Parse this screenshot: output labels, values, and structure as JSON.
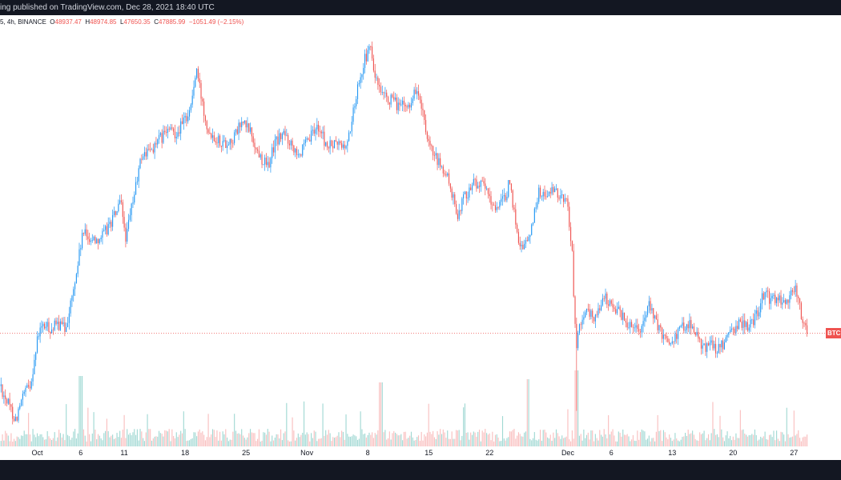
{
  "header": {
    "published_text": "ing published on TradingView.com, Dec 28, 2021 18:40 UTC"
  },
  "legend": {
    "symbol_text": "5, 4h, BINANCE",
    "o_label": "O",
    "o_value": "48937.47",
    "h_label": "H",
    "h_value": "48974.85",
    "l_label": "L",
    "l_value": "47650.35",
    "c_label": "C",
    "c_value": "47885.99",
    "change": "−1051.49 (−2.15%)"
  },
  "price_tag": {
    "text": "BTC"
  },
  "colors": {
    "up": "#2196f3",
    "down": "#ef5350",
    "vol_up": "#80cbc4",
    "vol_down": "#f7a8a8",
    "bar": "#131722"
  },
  "chart_data": {
    "type": "candlestick",
    "interval": "4h",
    "exchange": "BINANCE",
    "x_ticks": [
      {
        "label": "Oct",
        "day": 0
      },
      {
        "label": "6",
        "day": 5
      },
      {
        "label": "11",
        "day": 10
      },
      {
        "label": "18",
        "day": 17
      },
      {
        "label": "25",
        "day": 24
      },
      {
        "label": "Nov",
        "day": 31
      },
      {
        "label": "8",
        "day": 38
      },
      {
        "label": "15",
        "day": 45
      },
      {
        "label": "22",
        "day": 52
      },
      {
        "label": "Dec",
        "day": 61
      },
      {
        "label": "6",
        "day": 66
      },
      {
        "label": "13",
        "day": 73
      },
      {
        "label": "20",
        "day": 80
      },
      {
        "label": "27",
        "day": 87
      }
    ],
    "y_range": [
      40500,
      69500
    ],
    "last_price": 47885.99,
    "price_path": [
      [
        -4.5,
        44500
      ],
      [
        -3.5,
        43000
      ],
      [
        -2.5,
        41700
      ],
      [
        -1.5,
        43500
      ],
      [
        -0.8,
        44200
      ],
      [
        0.2,
        48000
      ],
      [
        0.8,
        48400
      ],
      [
        1.6,
        48200
      ],
      [
        2.5,
        48500
      ],
      [
        3.2,
        48200
      ],
      [
        4.2,
        51000
      ],
      [
        5.2,
        55000
      ],
      [
        6.5,
        54600
      ],
      [
        7.6,
        54900
      ],
      [
        8.6,
        56000
      ],
      [
        9.6,
        57200
      ],
      [
        10.2,
        54600
      ],
      [
        11.0,
        57400
      ],
      [
        12.0,
        60600
      ],
      [
        13.0,
        61000
      ],
      [
        14.0,
        61700
      ],
      [
        15.0,
        62400
      ],
      [
        16.0,
        62300
      ],
      [
        16.8,
        63000
      ],
      [
        17.6,
        64000
      ],
      [
        18.3,
        66800
      ],
      [
        18.8,
        65000
      ],
      [
        19.6,
        62600
      ],
      [
        20.4,
        62000
      ],
      [
        21.5,
        61500
      ],
      [
        22.5,
        61800
      ],
      [
        23.5,
        63000
      ],
      [
        24.5,
        62400
      ],
      [
        25.2,
        61000
      ],
      [
        26.5,
        59800
      ],
      [
        27.3,
        61500
      ],
      [
        28.3,
        62200
      ],
      [
        29.5,
        61300
      ],
      [
        30.3,
        60800
      ],
      [
        31.3,
        61800
      ],
      [
        32.3,
        62800
      ],
      [
        33.3,
        61200
      ],
      [
        34.5,
        61500
      ],
      [
        35.5,
        61200
      ],
      [
        36.2,
        63200
      ],
      [
        37.0,
        66200
      ],
      [
        37.6,
        67400
      ],
      [
        38.3,
        68400
      ],
      [
        38.8,
        66300
      ],
      [
        39.6,
        64800
      ],
      [
        40.6,
        64600
      ],
      [
        41.6,
        64200
      ],
      [
        42.6,
        64100
      ],
      [
        43.6,
        65500
      ],
      [
        44.3,
        63700
      ],
      [
        44.8,
        61500
      ],
      [
        45.6,
        60600
      ],
      [
        46.6,
        59600
      ],
      [
        47.4,
        58700
      ],
      [
        48.2,
        56300
      ],
      [
        49.0,
        57600
      ],
      [
        50.3,
        58800
      ],
      [
        51.6,
        58200
      ],
      [
        52.2,
        57000
      ],
      [
        53.0,
        57100
      ],
      [
        53.7,
        57400
      ],
      [
        54.2,
        58600
      ],
      [
        54.8,
        56800
      ],
      [
        55.4,
        54200
      ],
      [
        56.0,
        54300
      ],
      [
        56.6,
        54800
      ],
      [
        57.6,
        58000
      ],
      [
        58.4,
        57800
      ],
      [
        59.2,
        58000
      ],
      [
        60.0,
        57800
      ],
      [
        60.5,
        57600
      ],
      [
        61.0,
        57100
      ],
      [
        61.5,
        53600
      ],
      [
        61.8,
        48500
      ],
      [
        62.0,
        47200
      ],
      [
        62.6,
        49100
      ],
      [
        63.4,
        49300
      ],
      [
        64.2,
        49000
      ],
      [
        65.0,
        50500
      ],
      [
        65.8,
        50000
      ],
      [
        66.6,
        49700
      ],
      [
        67.6,
        48700
      ],
      [
        68.4,
        48600
      ],
      [
        69.4,
        48300
      ],
      [
        70.4,
        49900
      ],
      [
        71.2,
        48500
      ],
      [
        72.0,
        47500
      ],
      [
        72.7,
        47400
      ],
      [
        73.5,
        47800
      ],
      [
        74.3,
        48400
      ],
      [
        75.0,
        48700
      ],
      [
        75.7,
        47800
      ],
      [
        76.5,
        46800
      ],
      [
        77.3,
        47200
      ],
      [
        78.3,
        46700
      ],
      [
        79.3,
        47300
      ],
      [
        80.0,
        48200
      ],
      [
        80.8,
        48600
      ],
      [
        81.7,
        48400
      ],
      [
        82.6,
        49000
      ],
      [
        83.5,
        50600
      ],
      [
        84.2,
        50400
      ],
      [
        85.0,
        50300
      ],
      [
        85.6,
        50100
      ],
      [
        86.4,
        50300
      ],
      [
        86.9,
        51200
      ],
      [
        87.4,
        50600
      ],
      [
        88.1,
        48400
      ],
      [
        88.6,
        47886
      ]
    ]
  }
}
